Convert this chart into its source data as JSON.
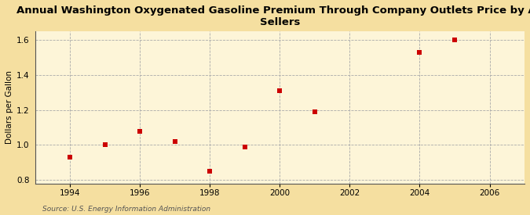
{
  "title": "Annual Washington Oxygenated Gasoline Premium Through Company Outlets Price by All\nSellers",
  "ylabel": "Dollars per Gallon",
  "source": "Source: U.S. Energy Information Administration",
  "background_color": "#f5dfa0",
  "plot_bg_color": "#fdf5d8",
  "x_data": [
    1994,
    1995,
    1996,
    1997,
    1998,
    1999,
    2000,
    2001,
    2004,
    2005
  ],
  "y_data": [
    0.93,
    1.0,
    1.08,
    1.02,
    0.85,
    0.99,
    1.31,
    1.19,
    1.53,
    1.6
  ],
  "marker_color": "#cc0000",
  "marker": "s",
  "marker_size": 16,
  "xlim": [
    1993.0,
    2007.0
  ],
  "ylim": [
    0.78,
    1.65
  ],
  "xticks": [
    1994,
    1996,
    1998,
    2000,
    2002,
    2004,
    2006
  ],
  "yticks": [
    0.8,
    1.0,
    1.2,
    1.4,
    1.6
  ],
  "grid_color": "#aaaaaa",
  "grid_style": "--",
  "title_fontsize": 9.5,
  "label_fontsize": 7.5,
  "tick_fontsize": 7.5,
  "source_fontsize": 6.5
}
